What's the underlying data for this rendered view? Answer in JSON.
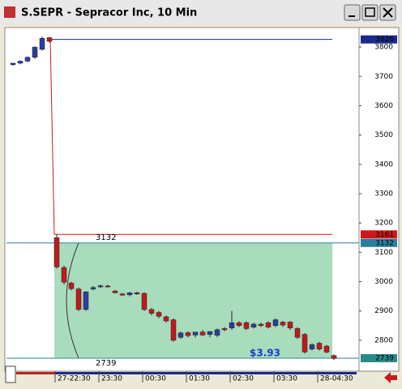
{
  "window_title": "S.SEPR - Sepracor Inc, 10 Min",
  "chart_data": {
    "type": "candlestick",
    "categories": [
      null,
      null,
      null,
      null,
      null,
      null,
      "27-22:30",
      null,
      null,
      null,
      null,
      null,
      "23:30",
      null,
      null,
      null,
      null,
      null,
      "00:30",
      null,
      null,
      null,
      null,
      null,
      "01:30",
      null,
      null,
      null,
      null,
      null,
      "02:30",
      null,
      null,
      null,
      null,
      null,
      "03:30",
      null,
      null,
      null,
      null,
      null,
      "28-04:30",
      null,
      null
    ],
    "open": [
      3740,
      3745,
      3752,
      3765,
      3792,
      3832,
      3150,
      3048,
      2995,
      2975,
      2905,
      2975,
      2982,
      2985,
      2968,
      2958,
      2955,
      2962,
      2960,
      2905,
      2895,
      2880,
      2870,
      2810,
      2826,
      2818,
      2828,
      2820,
      2817,
      2840,
      2842,
      2860,
      2860,
      2845,
      2855,
      2860,
      2850,
      2862,
      2862,
      2840,
      2820,
      2770,
      2790,
      2780,
      2748
    ],
    "high": [
      3746,
      3754,
      3768,
      3802,
      3836,
      3835,
      3161,
      3055,
      3000,
      2980,
      2968,
      2985,
      2990,
      2990,
      2972,
      2962,
      2965,
      2966,
      2964,
      2910,
      2900,
      2885,
      2875,
      2830,
      2830,
      2825,
      2835,
      2825,
      2840,
      2845,
      2900,
      2865,
      2865,
      2860,
      2860,
      2865,
      2875,
      2866,
      2866,
      2845,
      2825,
      2790,
      2795,
      2785,
      2752
    ],
    "low": [
      3736,
      3741,
      3748,
      3760,
      3788,
      3815,
      3045,
      2990,
      2970,
      2900,
      2900,
      2970,
      2978,
      2980,
      2960,
      2952,
      2950,
      2955,
      2900,
      2885,
      2875,
      2860,
      2795,
      2805,
      2810,
      2810,
      2815,
      2810,
      2810,
      2830,
      2835,
      2845,
      2835,
      2840,
      2845,
      2840,
      2845,
      2845,
      2835,
      2805,
      2755,
      2765,
      2765,
      2755,
      2733
    ],
    "close": [
      3745,
      3752,
      3765,
      3800,
      3830,
      3820,
      3050,
      2998,
      2976,
      2905,
      2965,
      2980,
      2986,
      2982,
      2962,
      2954,
      2962,
      2958,
      2905,
      2892,
      2882,
      2866,
      2800,
      2825,
      2816,
      2828,
      2818,
      2830,
      2836,
      2836,
      2860,
      2850,
      2840,
      2855,
      2850,
      2845,
      2870,
      2852,
      2842,
      2810,
      2760,
      2785,
      2770,
      2760,
      2738
    ],
    "up_color": "#2a3f9e",
    "down_color": "#c2181b",
    "ylim": [
      2703,
      3861
    ],
    "yticks": [
      2800,
      2900,
      3000,
      3100,
      3200,
      3300,
      3400,
      3500,
      3600,
      3700,
      3800
    ],
    "levels": [
      {
        "value": 3826,
        "color": "#1a2a8c"
      },
      {
        "value": 3161,
        "color": "#d01818"
      },
      {
        "value": 3132,
        "color": "#2a7fa0"
      },
      {
        "value": 2739,
        "color": "#2a8a8a"
      }
    ],
    "annotation": "$3.93"
  }
}
